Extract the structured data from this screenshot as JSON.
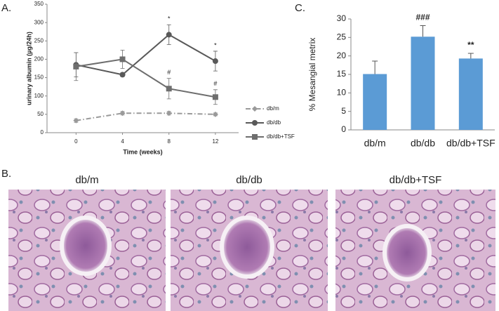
{
  "panel_labels": [
    "A.",
    "B.",
    "C."
  ],
  "chart_data": [
    {
      "type": "line",
      "xlabel": "Time (weeks)",
      "ylabel": "urinary albumin (µg/24h)",
      "x": [
        0,
        4,
        8,
        12
      ],
      "xlim": [
        -2.5,
        14
      ],
      "xticks": [
        0,
        4,
        8,
        12
      ],
      "ylim": [
        0,
        350
      ],
      "yticks": [
        0,
        50,
        100,
        150,
        200,
        250,
        300,
        350
      ],
      "series": [
        {
          "name": "db/m",
          "color": "#9a9a9a",
          "marker": "diamond",
          "dash": "dashdot",
          "values": [
            33,
            53,
            53,
            50
          ],
          "errors": [
            5,
            5,
            5,
            4
          ]
        },
        {
          "name": "db/db",
          "color": "#595959",
          "marker": "circle",
          "values": [
            185,
            158,
            267,
            195
          ],
          "errors": [
            33,
            5,
            27,
            27
          ],
          "labels": [
            null,
            null,
            "*",
            "*"
          ]
        },
        {
          "name": "db/db+TSF",
          "color": "#6e6e6e",
          "marker": "square",
          "values": [
            180,
            200,
            120,
            97
          ],
          "errors": [
            38,
            25,
            28,
            20
          ],
          "labels": [
            null,
            null,
            "#",
            "#"
          ]
        }
      ]
    },
    {
      "type": "bar",
      "ylabel": "% Mesangial  metrix",
      "categories": [
        "db/m",
        "db/db",
        "db/db+TSF"
      ],
      "values": [
        15.1,
        25.2,
        19.3
      ],
      "errors": [
        3.5,
        3,
        1.4
      ],
      "labels": [
        null,
        "###",
        "**"
      ],
      "color": "#5b9bd5",
      "ylim": [
        0,
        30
      ],
      "yticks": [
        0,
        5,
        10,
        15,
        20,
        25,
        30
      ]
    }
  ],
  "micrographs": [
    {
      "caption": "db/m"
    },
    {
      "caption": "db/db"
    },
    {
      "caption": "db/db+TSF"
    }
  ]
}
